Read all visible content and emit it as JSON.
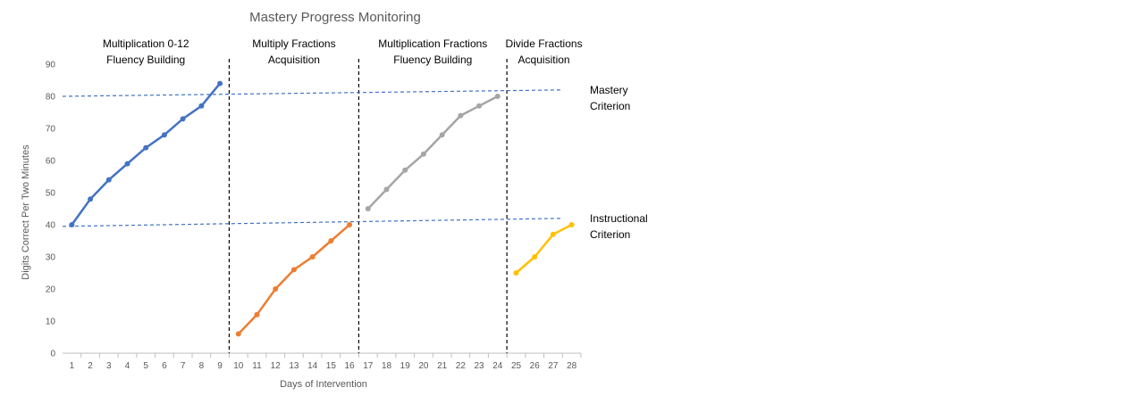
{
  "chart_data": {
    "type": "line",
    "title": "Mastery Progress Monitoring",
    "xlabel": "Days of Intervention",
    "ylabel": "Digits Correct Per Two Minutes",
    "xlim": [
      1,
      28
    ],
    "ylim": [
      0,
      90
    ],
    "y_ticks": [
      0,
      10,
      20,
      30,
      40,
      50,
      60,
      70,
      80,
      90
    ],
    "x_ticks": [
      1,
      2,
      3,
      4,
      5,
      6,
      7,
      8,
      9,
      10,
      11,
      12,
      13,
      14,
      15,
      16,
      17,
      18,
      19,
      20,
      21,
      22,
      23,
      24,
      25,
      26,
      27,
      28
    ],
    "grid": false,
    "legend": "none",
    "phase_lines": [
      9.5,
      16.5,
      24.5
    ],
    "phases": [
      {
        "lines": [
          "Multiplication 0-12",
          "Fluency Building"
        ],
        "center": 5
      },
      {
        "lines": [
          "Multiply Fractions",
          "Acquisition"
        ],
        "center": 13
      },
      {
        "lines": [
          "Multiplication Fractions",
          "Fluency Building"
        ],
        "center": 20.5
      },
      {
        "lines": [
          "Divide Fractions",
          "Acquisition"
        ],
        "center": 26.5
      }
    ],
    "series": [
      {
        "color": "#4472C4",
        "x": [
          1,
          2,
          3,
          4,
          5,
          6,
          7,
          8,
          9
        ],
        "values": [
          40,
          48,
          54,
          59,
          64,
          68,
          73,
          77,
          84
        ]
      },
      {
        "color": "#ED7D31",
        "x": [
          10,
          11,
          12,
          13,
          14,
          15,
          16
        ],
        "values": [
          6,
          12,
          20,
          26,
          30,
          35,
          40
        ]
      },
      {
        "color": "#A5A5A5",
        "x": [
          17,
          18,
          19,
          20,
          21,
          22,
          23,
          24
        ],
        "values": [
          45,
          51,
          57,
          62,
          68,
          74,
          77,
          80
        ]
      },
      {
        "color": "#FFC000",
        "x": [
          25,
          26,
          27,
          28
        ],
        "values": [
          25,
          30,
          37,
          40
        ]
      }
    ],
    "criteria": [
      {
        "lines": [
          "Mastery",
          "Criterion"
        ],
        "color": "#4472C4",
        "start": 80,
        "end": 82
      },
      {
        "lines": [
          "Instructional",
          "Criterion"
        ],
        "color": "#4472C4",
        "start": 39.5,
        "end": 42
      }
    ]
  }
}
